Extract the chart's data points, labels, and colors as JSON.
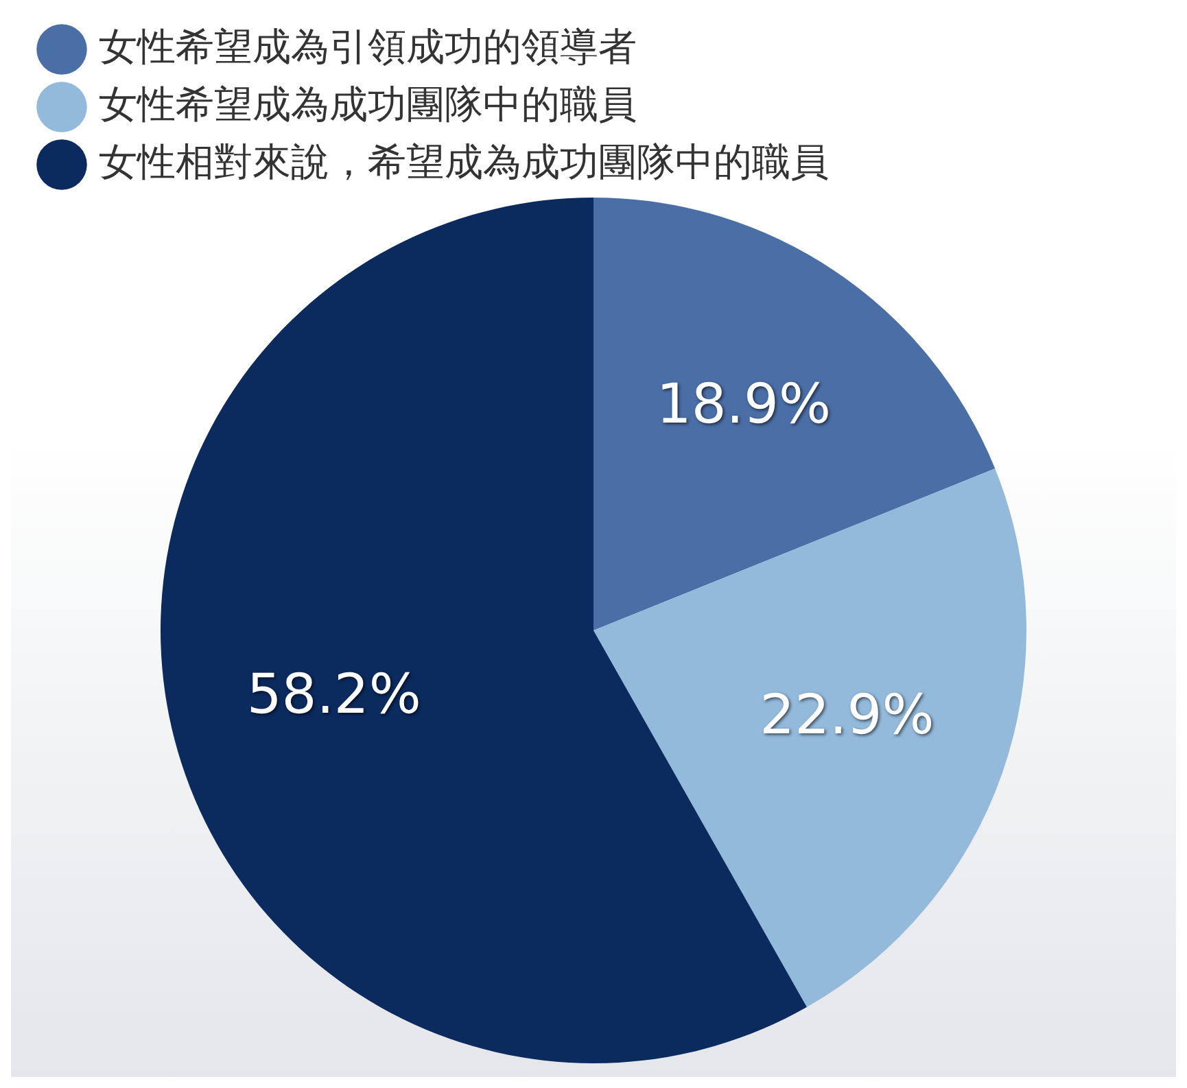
{
  "chart_data": {
    "type": "pie",
    "categories": [
      "女性希望成為引領成功的領導者",
      "女性希望成為成功團隊中的職員",
      "女性相對來說，希望成為成功團隊中的職員"
    ],
    "values": [
      18.9,
      22.9,
      58.2
    ],
    "colors": [
      "#4a6ea6",
      "#93b9db",
      "#0b2a5e"
    ],
    "value_labels": [
      "18.9%",
      "22.9%",
      "58.2%"
    ],
    "legend": "top left"
  }
}
